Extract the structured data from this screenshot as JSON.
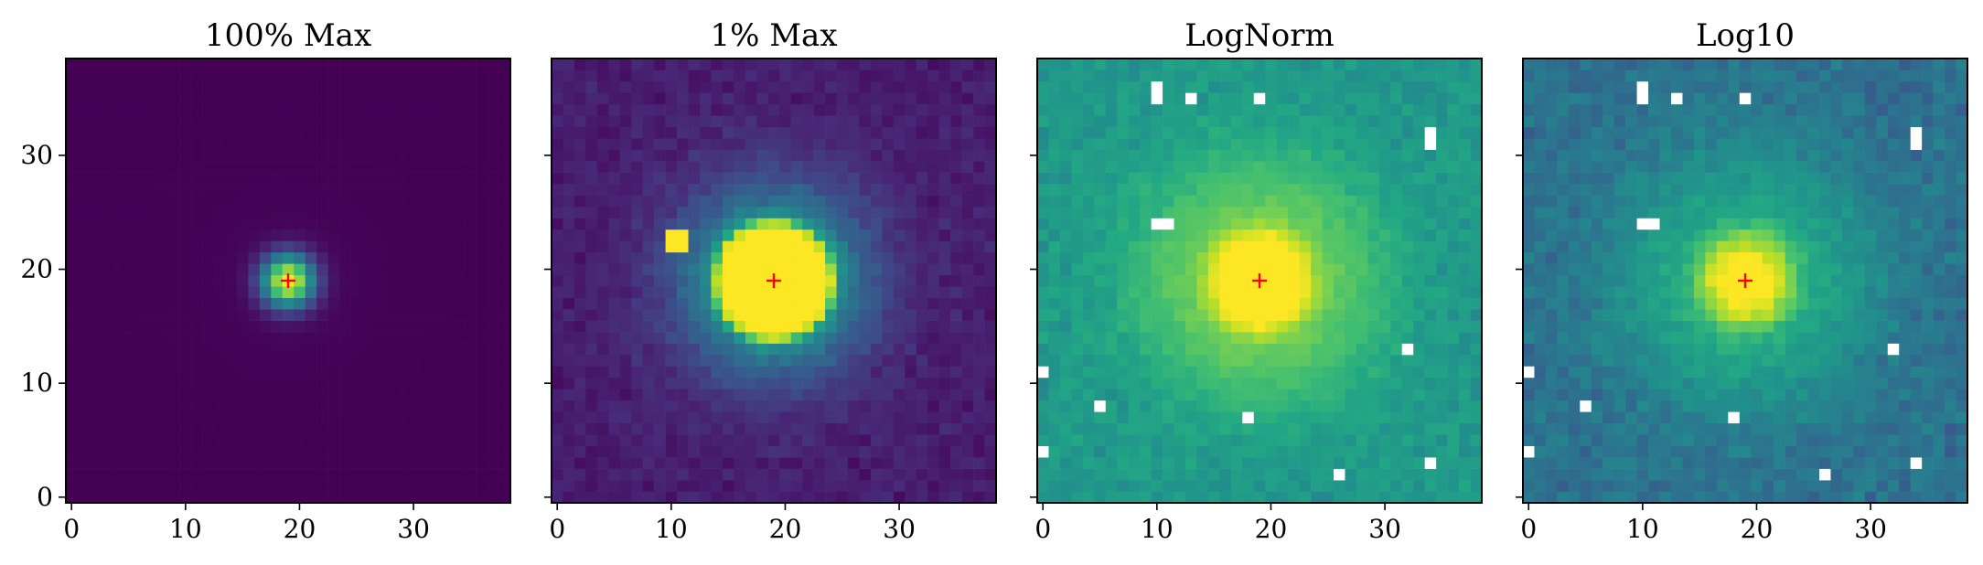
{
  "chart_data": [
    {
      "type": "heatmap",
      "title": "100% Max",
      "xlabel": "",
      "ylabel": "",
      "colormap": "viridis",
      "grid_size": [
        39,
        39
      ],
      "xlim": [
        -0.5,
        38.5
      ],
      "ylim": [
        -0.5,
        38.5
      ],
      "xticks": [
        0,
        10,
        20,
        30
      ],
      "xtick_labels": [
        "0",
        "10",
        "20",
        "30"
      ],
      "yticks": [
        0,
        10,
        20,
        30
      ],
      "ytick_labels": [
        "0",
        "10",
        "20",
        "30"
      ],
      "show_ytick_labels": true,
      "grid": false,
      "display_scale": "linear, vmax = 100% of peak",
      "source_center": [
        19,
        19
      ],
      "marker": {
        "symbol": "+",
        "x": 19,
        "y": 19,
        "color": "#ff0000"
      },
      "background_level": 0.0,
      "peak_level": 1.0,
      "core_sigma_px": 2.2,
      "masked_pixels": []
    },
    {
      "type": "heatmap",
      "title": "1% Max",
      "xlabel": "",
      "ylabel": "",
      "colormap": "viridis",
      "grid_size": [
        39,
        39
      ],
      "xlim": [
        -0.5,
        38.5
      ],
      "ylim": [
        -0.5,
        38.5
      ],
      "xticks": [
        0,
        10,
        20,
        30
      ],
      "xtick_labels": [
        "0",
        "10",
        "20",
        "30"
      ],
      "yticks": [
        0,
        10,
        20,
        30
      ],
      "ytick_labels": [
        "",
        "",
        "",
        ""
      ],
      "show_ytick_labels": false,
      "grid": false,
      "display_scale": "linear, vmax = 1% of peak",
      "source_center": [
        19,
        19
      ],
      "marker": {
        "symbol": "+",
        "x": 19,
        "y": 19,
        "color": "#ff0000"
      },
      "saturated_radius_px": 4.7,
      "saturated_pixels": [
        [
          10,
          23
        ],
        [
          11,
          23
        ],
        [
          10,
          22
        ],
        [
          11,
          22
        ]
      ],
      "masked_pixels": []
    },
    {
      "type": "heatmap",
      "title": "LogNorm",
      "xlabel": "",
      "ylabel": "",
      "colormap": "viridis",
      "grid_size": [
        39,
        39
      ],
      "xlim": [
        -0.5,
        38.5
      ],
      "ylim": [
        -0.5,
        38.5
      ],
      "xticks": [
        0,
        10,
        20,
        30
      ],
      "xtick_labels": [
        "0",
        "10",
        "20",
        "30"
      ],
      "yticks": [
        0,
        10,
        20,
        30
      ],
      "ytick_labels": [
        "",
        "",
        "",
        ""
      ],
      "show_ytick_labels": false,
      "grid": false,
      "display_scale": "logarithmic (LogNorm)",
      "source_center": [
        19,
        19
      ],
      "marker": {
        "symbol": "+",
        "x": 19,
        "y": 19,
        "color": "#ff0000"
      },
      "masked_pixels": [
        [
          10,
          36
        ],
        [
          10,
          35
        ],
        [
          13,
          35
        ],
        [
          19,
          35
        ],
        [
          34,
          32
        ],
        [
          34,
          31
        ],
        [
          10,
          24
        ],
        [
          11,
          24
        ],
        [
          32,
          13
        ],
        [
          0,
          11
        ],
        [
          5,
          8
        ],
        [
          18,
          7
        ],
        [
          0,
          4
        ],
        [
          34,
          3
        ],
        [
          26,
          2
        ]
      ]
    },
    {
      "type": "heatmap",
      "title": "Log10",
      "xlabel": "",
      "ylabel": "",
      "colormap": "viridis",
      "grid_size": [
        39,
        39
      ],
      "xlim": [
        -0.5,
        38.5
      ],
      "ylim": [
        -0.5,
        38.5
      ],
      "xticks": [
        0,
        10,
        20,
        30
      ],
      "xtick_labels": [
        "0",
        "10",
        "20",
        "30"
      ],
      "yticks": [
        0,
        10,
        20,
        30
      ],
      "ytick_labels": [
        "",
        "",
        "",
        ""
      ],
      "show_ytick_labels": false,
      "grid": false,
      "display_scale": "log10 of data",
      "source_center": [
        19,
        19
      ],
      "marker": {
        "symbol": "+",
        "x": 19,
        "y": 19,
        "color": "#ff0000"
      },
      "masked_pixels": [
        [
          10,
          36
        ],
        [
          10,
          35
        ],
        [
          13,
          35
        ],
        [
          19,
          35
        ],
        [
          34,
          32
        ],
        [
          34,
          31
        ],
        [
          10,
          24
        ],
        [
          11,
          24
        ],
        [
          32,
          13
        ],
        [
          0,
          11
        ],
        [
          5,
          8
        ],
        [
          18,
          7
        ],
        [
          0,
          4
        ],
        [
          34,
          3
        ],
        [
          26,
          2
        ]
      ]
    }
  ]
}
